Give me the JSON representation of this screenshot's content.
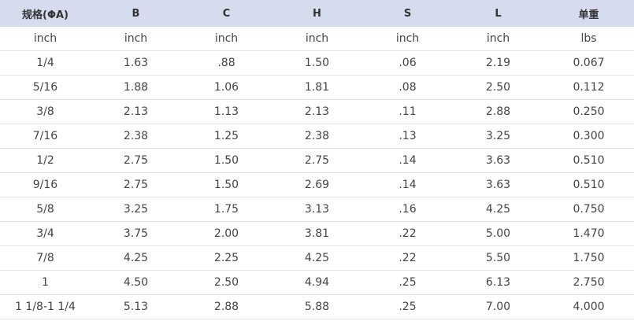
{
  "table": {
    "headers": [
      "规格(ΦA)",
      "B",
      "C",
      "H",
      "S",
      "L",
      "单重"
    ],
    "units": [
      "inch",
      "inch",
      "inch",
      "inch",
      "inch",
      "inch",
      "lbs"
    ],
    "rows": [
      [
        "1/4",
        "1.63",
        ".88",
        "1.50",
        ".06",
        "2.19",
        "0.067"
      ],
      [
        "5/16",
        "1.88",
        "1.06",
        "1.81",
        ".08",
        "2.50",
        "0.112"
      ],
      [
        "3/8",
        "2.13",
        "1.13",
        "2.13",
        ".11",
        "2.88",
        "0.250"
      ],
      [
        "7/16",
        "2.38",
        "1.25",
        "2.38",
        ".13",
        "3.25",
        "0.300"
      ],
      [
        "1/2",
        "2.75",
        "1.50",
        "2.75",
        ".14",
        "3.63",
        "0.510"
      ],
      [
        "9/16",
        "2.75",
        "1.50",
        "2.69",
        ".14",
        "3.63",
        "0.510"
      ],
      [
        "5/8",
        "3.25",
        "1.75",
        "3.13",
        ".16",
        "4.25",
        "0.750"
      ],
      [
        "3/4",
        "3.75",
        "2.00",
        "3.81",
        ".22",
        "5.00",
        "1.470"
      ],
      [
        "7/8",
        "4.25",
        "2.25",
        "4.25",
        ".22",
        "5.50",
        "1.750"
      ],
      [
        "1",
        "4.50",
        "2.50",
        "4.94",
        ".25",
        "6.13",
        "2.750"
      ],
      [
        "1 1/8-1 1/4",
        "5.13",
        "2.88",
        "5.88",
        ".25",
        "7.00",
        "4.000"
      ]
    ]
  }
}
